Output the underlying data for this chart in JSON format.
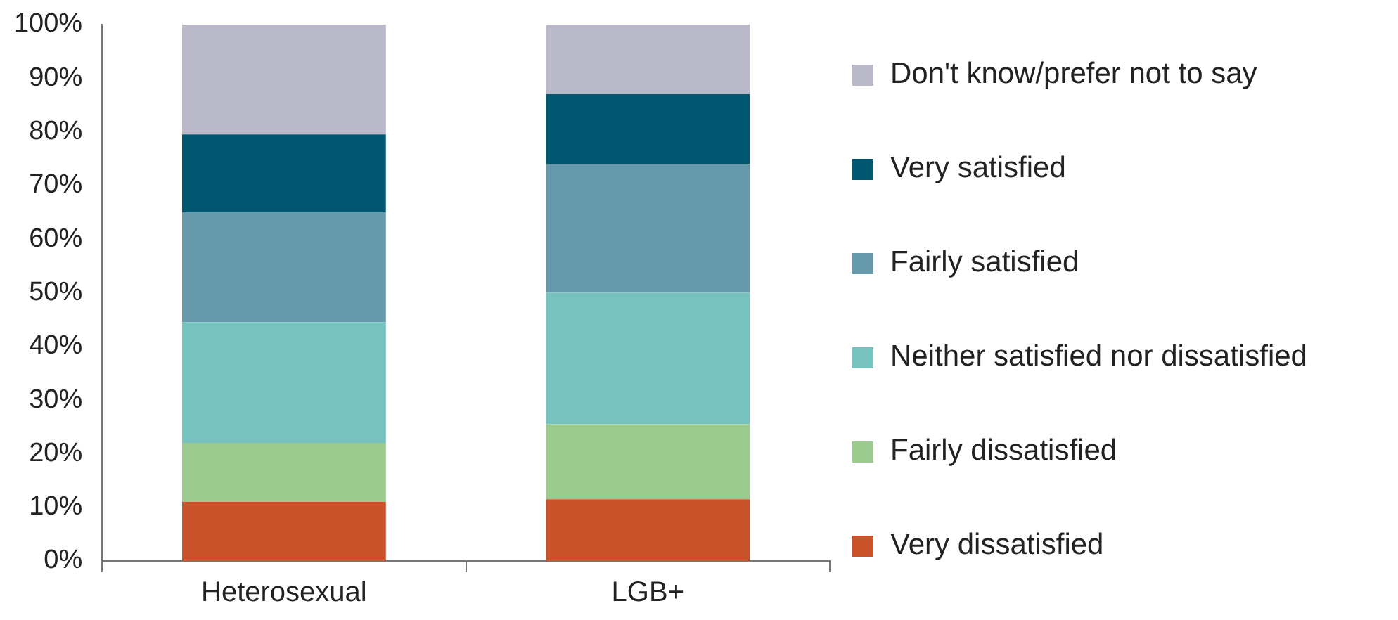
{
  "chart_data": {
    "type": "bar",
    "stacked": true,
    "categories": [
      "Heterosexual",
      "LGB+"
    ],
    "series": [
      {
        "name": "Very dissatisfied",
        "color": "#c9522a",
        "values": [
          11,
          11.5
        ]
      },
      {
        "name": "Fairly dissatisfied",
        "color": "#9bcb8e",
        "values": [
          11,
          14
        ]
      },
      {
        "name": "Neither satisfied nor dissatisfied",
        "color": "#76c2bf",
        "values": [
          22.5,
          24.5
        ]
      },
      {
        "name": "Fairly satisfied",
        "color": "#6699ab",
        "values": [
          20.5,
          24
        ]
      },
      {
        "name": "Very satisfied",
        "color": "#005870",
        "values": [
          14.5,
          13
        ]
      },
      {
        "name": "Don't know/prefer not to say",
        "color": "#b9b9c9",
        "values": [
          20.5,
          13
        ]
      }
    ],
    "ylim": [
      0,
      100
    ],
    "yticks": [
      {
        "value": 0,
        "label": "0%"
      },
      {
        "value": 10,
        "label": "10%"
      },
      {
        "value": 20,
        "label": "20%"
      },
      {
        "value": 30,
        "label": "30%"
      },
      {
        "value": 40,
        "label": "40%"
      },
      {
        "value": 50,
        "label": "50%"
      },
      {
        "value": 60,
        "label": "60%"
      },
      {
        "value": 70,
        "label": "70%"
      },
      {
        "value": 80,
        "label": "80%"
      },
      {
        "value": 90,
        "label": "90%"
      },
      {
        "value": 100,
        "label": "100%"
      }
    ],
    "grid": false,
    "legend": "right"
  }
}
